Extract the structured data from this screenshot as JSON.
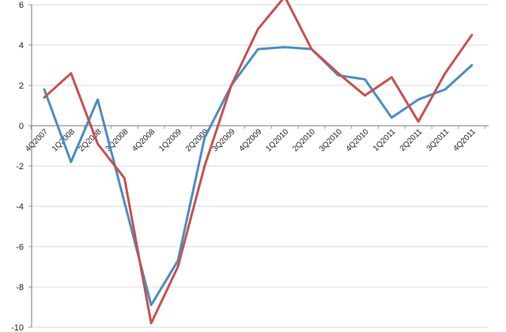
{
  "chart_data": {
    "type": "line",
    "title": "",
    "xlabel": "",
    "ylabel": "",
    "categories": [
      "4Q2007",
      "1Q2008",
      "2Q2008",
      "3Q2008",
      "4Q2008",
      "1Q2009",
      "2Q2009",
      "3Q2009",
      "4Q2009",
      "1Q2010",
      "2Q2010",
      "3Q2010",
      "4Q2010",
      "1Q2011",
      "2Q2011",
      "3Q2011",
      "4Q2011"
    ],
    "ylim": [
      -10,
      6
    ],
    "yticks": [
      6,
      4,
      2,
      0,
      -2,
      -4,
      -6,
      -8,
      -10
    ],
    "grid": true,
    "legend": "none",
    "series": [
      {
        "color": "#4a8ec2",
        "values": [
          1.8,
          -1.8,
          1.3,
          -3.8,
          -8.9,
          -6.7,
          -0.6,
          2.0,
          3.8,
          3.9,
          3.8,
          2.5,
          2.3,
          0.4,
          1.3,
          1.8,
          3.0
        ]
      },
      {
        "color": "#c8504f",
        "values": [
          1.4,
          2.6,
          -0.9,
          -2.6,
          -9.8,
          -7.0,
          -2.0,
          2.0,
          4.8,
          6.4,
          3.8,
          2.6,
          1.5,
          2.4,
          0.2,
          2.6,
          4.5
        ]
      }
    ]
  }
}
